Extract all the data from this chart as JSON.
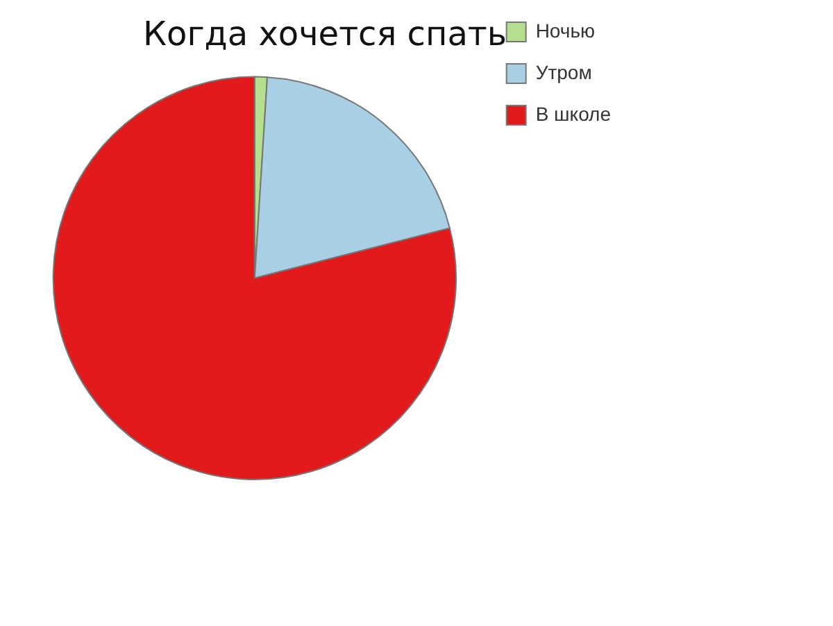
{
  "chart_data": {
    "type": "pie",
    "title": "Когда хочется спать",
    "categories": [
      "Ночью",
      "Утром",
      "В школе"
    ],
    "values": [
      1,
      20,
      79
    ],
    "colors": [
      "#b5de8f",
      "#a8cfe3",
      "#e21a1c"
    ],
    "legend": "top right"
  }
}
